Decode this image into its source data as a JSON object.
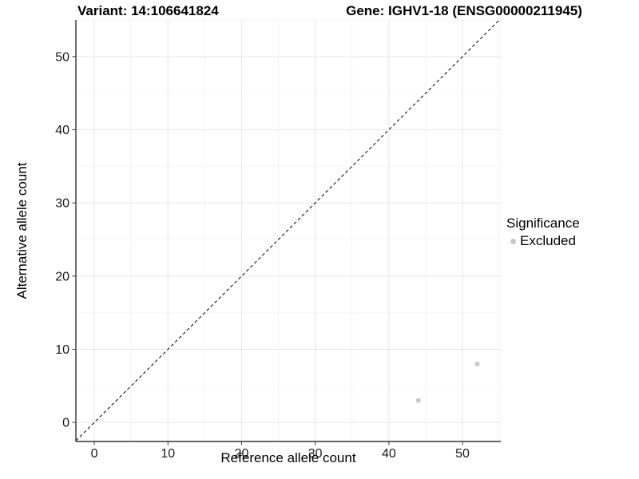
{
  "figure": {
    "title_left": "Variant: 14:106641824",
    "title_right": "Gene: IGHV1-18 (ENSG00000211945)"
  },
  "chart_data": {
    "type": "scatter",
    "title_left": "Variant: 14:106641824",
    "title_right": "Gene: IGHV1-18 (ENSG00000211945)",
    "xlabel": "Reference allele count",
    "ylabel": "Alternative allele count",
    "xlim": [
      -2.5,
      55.2
    ],
    "ylim": [
      -2.6,
      55.0
    ],
    "xticks": [
      0,
      10,
      20,
      30,
      40,
      50
    ],
    "yticks": [
      0,
      10,
      20,
      30,
      40,
      50
    ],
    "xminor": [
      5,
      15,
      25,
      35,
      45,
      55
    ],
    "yminor": [
      5,
      15,
      25,
      35,
      45,
      55
    ],
    "grid": "on",
    "reference_line": {
      "type": "identity y=x",
      "style": "dashed",
      "color": "#000000"
    },
    "series": [
      {
        "name": "Excluded",
        "color": "#c8c8c8",
        "point_radius": 3,
        "points": [
          {
            "x": 44,
            "y": 3
          },
          {
            "x": 52,
            "y": 8
          }
        ]
      }
    ],
    "legend": {
      "title": "Significance",
      "position": "right",
      "items": [
        {
          "label": "Excluded",
          "color": "#c8c8c8"
        }
      ]
    },
    "colors": {
      "background": "#ffffff",
      "grid_major": "#e6e6e6",
      "grid_minor": "#f4f4f4",
      "axis_line": "#333333",
      "tick_mark": "#333333",
      "tick_text": "#1a1a1a"
    },
    "tick_font_size": 16
  }
}
